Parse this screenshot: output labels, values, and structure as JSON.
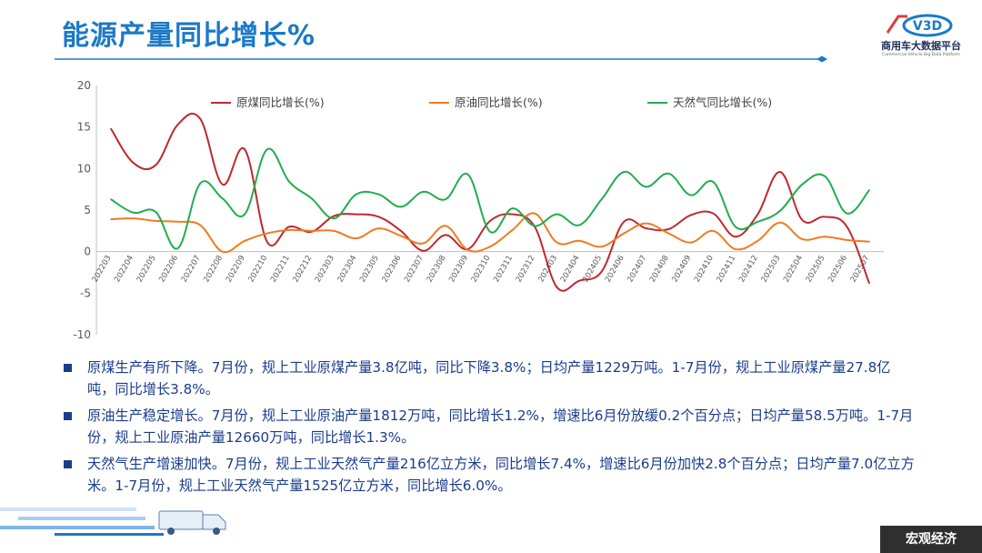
{
  "page": {
    "title": "能源产量同比增长%",
    "logo_text": "商用车大数据平台",
    "logo_sub": "Commercial Vehicle Big Data Platform",
    "logo_mark": "V3D",
    "footer_badge": "宏观经济",
    "accent_color": "#1b79c9",
    "text_color": "#1a3c8c"
  },
  "bullets": [
    {
      "text": "原煤生产有所下降。7月份，规上工业原煤产量3.8亿吨，同比下降3.8%；日均产量1229万吨。1-7月份，规上工业原煤产量27.8亿吨，同比增长3.8%。"
    },
    {
      "text": "原油生产稳定增长。7月份，规上工业原油产量1812万吨，同比增长1.2%，增速比6月份放缓0.2个百分点；日均产量58.5万吨。1-7月份，规上工业原油产量12660万吨，同比增长1.3%。"
    },
    {
      "text": "天然气生产增速加快。7月份，规上工业天然气产量216亿立方米，同比增长7.4%，增速比6月份加快2.8个百分点；日均产量7.0亿立方米。1-7月份，规上工业天然气产量1525亿立方米，同比增长6.0%。"
    }
  ],
  "chart_data": {
    "type": "line",
    "title": "",
    "xlabel": "",
    "ylabel": "",
    "ylim": [
      -10,
      20
    ],
    "yticks": [
      -10,
      -5,
      0,
      5,
      10,
      15,
      20
    ],
    "grid": false,
    "legend_position": "top",
    "categories": [
      "202203",
      "202204",
      "202205",
      "202206",
      "202207",
      "202208",
      "202209",
      "202210",
      "202211",
      "202212",
      "202303",
      "202304",
      "202305",
      "202306",
      "202307",
      "202308",
      "202309",
      "202310",
      "202311",
      "202312",
      "202403",
      "202404",
      "202405",
      "202406",
      "202407",
      "202408",
      "202409",
      "202410",
      "202411",
      "202412",
      "202503",
      "202504",
      "202505",
      "202506",
      "202507"
    ],
    "series": [
      {
        "name": "原煤同比增长(%)",
        "color": "#c0282d",
        "values": [
          14.8,
          10.7,
          10.4,
          15.3,
          16.0,
          8.1,
          12.3,
          1.2,
          3.0,
          2.4,
          4.3,
          4.5,
          4.2,
          2.5,
          0.1,
          2.0,
          0.3,
          3.7,
          4.5,
          3.0,
          -4.3,
          -3.5,
          -2.4,
          3.6,
          2.8,
          2.7,
          4.4,
          4.6,
          1.8,
          4.5,
          9.6,
          3.8,
          4.2,
          3.0,
          -3.8
        ]
      },
      {
        "name": "原油同比增长(%)",
        "color": "#f07b1f",
        "values": [
          3.9,
          4.0,
          3.7,
          3.6,
          3.2,
          0.0,
          1.3,
          2.2,
          2.6,
          2.5,
          2.5,
          1.6,
          2.8,
          1.9,
          1.0,
          3.1,
          0.2,
          0.6,
          2.6,
          4.6,
          1.1,
          1.3,
          0.6,
          2.2,
          3.4,
          2.2,
          1.1,
          2.5,
          0.3,
          1.3,
          3.5,
          1.5,
          1.8,
          1.4,
          1.2
        ]
      },
      {
        "name": "天然气同比增长(%)",
        "color": "#21ad4f",
        "values": [
          6.3,
          4.7,
          4.8,
          0.4,
          8.2,
          6.4,
          4.5,
          12.3,
          8.4,
          6.4,
          4.0,
          6.9,
          6.9,
          5.4,
          7.2,
          6.3,
          9.3,
          2.4,
          5.2,
          3.1,
          4.5,
          3.2,
          6.3,
          9.6,
          7.8,
          9.4,
          6.8,
          8.4,
          3.0,
          3.6,
          4.9,
          8.1,
          9.1,
          4.6,
          7.4
        ]
      }
    ]
  }
}
